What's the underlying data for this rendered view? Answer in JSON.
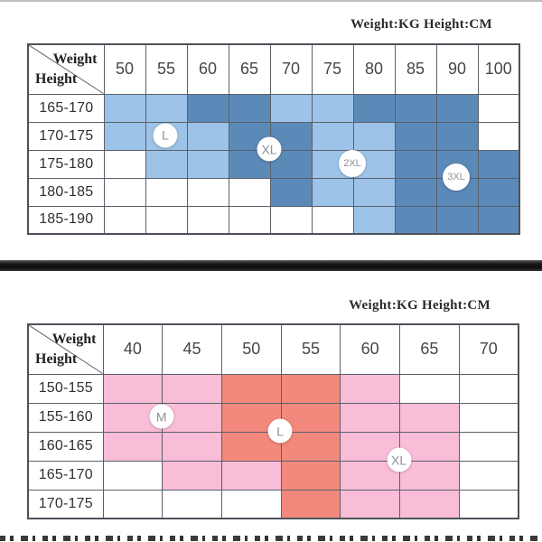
{
  "colors": {
    "light_blue": "#9dc3e8",
    "dark_blue": "#5b8ab8",
    "pink": "#f9bdd8",
    "salmon": "#f2897c",
    "none": "#ffffff",
    "grid_line": "#5a606a",
    "table_border": "#4d525a",
    "separator_bar": "#1f1f1f",
    "marker_text": "#8d9197",
    "label_text": "#303030"
  },
  "chart_data": [
    {
      "type": "heatmap",
      "title": "Weight:KG Height:CM",
      "x_label": "Weight",
      "y_label": "Height",
      "x_unit": "KG",
      "y_unit": "CM",
      "x_ticks": [
        "50",
        "55",
        "60",
        "65",
        "70",
        "75",
        "80",
        "85",
        "90",
        "100"
      ],
      "y_ticks": [
        "165-170",
        "170-175",
        "175-180",
        "180-185",
        "185-190"
      ],
      "fill_legend": {
        "L": "light_blue",
        "D": "dark_blue",
        "": "none"
      },
      "cells": [
        [
          "L",
          "L",
          "D",
          "D",
          "L",
          "L",
          "D",
          "D",
          "D",
          ""
        ],
        [
          "L",
          "L",
          "L",
          "D",
          "D",
          "L",
          "L",
          "D",
          "D",
          ""
        ],
        [
          "",
          "L",
          "L",
          "D",
          "D",
          "L",
          "L",
          "D",
          "D",
          "D"
        ],
        [
          "",
          "",
          "",
          "",
          "D",
          "L",
          "L",
          "D",
          "D",
          "D"
        ],
        [
          "",
          "",
          "",
          "",
          "",
          "",
          "L",
          "D",
          "D",
          "D"
        ]
      ],
      "markers": [
        {
          "label": "L",
          "col": 1.5,
          "row": 1.5
        },
        {
          "label": "XL",
          "col": 4.0,
          "row": 2.0
        },
        {
          "label": "2XL",
          "col": 6.0,
          "row": 2.5
        },
        {
          "label": "3XL",
          "col": 8.5,
          "row": 3.0
        }
      ]
    },
    {
      "type": "heatmap",
      "title": "Weight:KG Height:CM",
      "x_label": "Weight",
      "y_label": "Height",
      "x_unit": "KG",
      "y_unit": "CM",
      "x_ticks": [
        "40",
        "45",
        "50",
        "55",
        "60",
        "65",
        "70"
      ],
      "y_ticks": [
        "150-155",
        "155-160",
        "160-165",
        "165-170",
        "170-175"
      ],
      "fill_legend": {
        "P": "pink",
        "S": "salmon",
        "": "none"
      },
      "cells": [
        [
          "P",
          "P",
          "S",
          "S",
          "P",
          "",
          ""
        ],
        [
          "P",
          "P",
          "S",
          "S",
          "P",
          "P",
          ""
        ],
        [
          "P",
          "P",
          "S",
          "S",
          "P",
          "P",
          ""
        ],
        [
          "",
          "P",
          "P",
          "S",
          "P",
          "P",
          ""
        ],
        [
          "",
          "",
          "",
          "S",
          "P",
          "P",
          ""
        ]
      ],
      "markers": [
        {
          "label": "M",
          "col": 1.0,
          "row": 1.5
        },
        {
          "label": "L",
          "col": 3.0,
          "row": 2.0
        },
        {
          "label": "XL",
          "col": 5.0,
          "row": 3.0
        }
      ]
    }
  ]
}
